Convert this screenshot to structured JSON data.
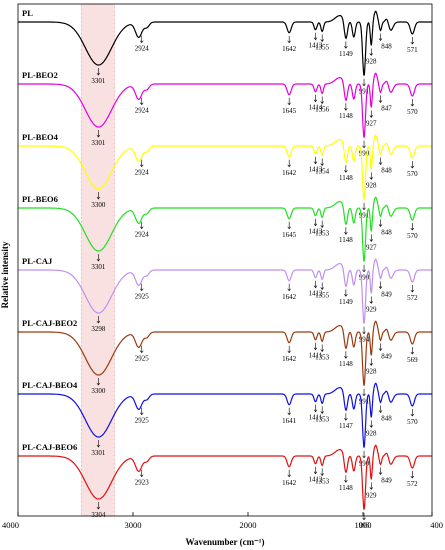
{
  "chart_data": {
    "type": "line",
    "xlabel": "Wavenumber (cm⁻¹)",
    "ylabel": "Relative intensity",
    "xlim": [
      4000,
      400
    ],
    "x_reversed": true,
    "x_ticks": [
      4000,
      3000,
      2000,
      1000,
      400
    ],
    "x_tick_labels": [
      "4000",
      "3000",
      "2000",
      "1000",
      "400"
    ],
    "highlight_band": {
      "from": 3450,
      "to": 3160,
      "color": "#f6c8c8"
    },
    "series": [
      {
        "name": "PL",
        "color": "#000000",
        "peaks": [
          "3301",
          "2924",
          "1642",
          "1413",
          "1355",
          "1149",
          "991",
          "928",
          "848",
          "571"
        ]
      },
      {
        "name": "PL-BEO2",
        "color": "#e000e0",
        "peaks": [
          "3301",
          "2924",
          "1645",
          "1414",
          "1356",
          "1148",
          "990",
          "927",
          "847",
          "570"
        ]
      },
      {
        "name": "PL-BEO4",
        "color": "#ffff00",
        "peaks": [
          "3300",
          "2924",
          "1642",
          "1413",
          "1354",
          "1148",
          "991",
          "928",
          "848",
          "570"
        ]
      },
      {
        "name": "PL-BEO6",
        "color": "#22e022",
        "peaks": [
          "3301",
          "2924",
          "1645",
          "1413",
          "1353",
          "1148",
          "990",
          "927",
          "848",
          "570"
        ]
      },
      {
        "name": "PL-CAJ",
        "color": "#c090f0",
        "peaks": [
          "3298",
          "2925",
          "1642",
          "1412",
          "1355",
          "1149",
          "994",
          "929",
          "849",
          "572"
        ]
      },
      {
        "name": "PL-CAJ-BEO2",
        "color": "#9a3a10",
        "peaks": [
          "3300",
          "2925",
          "1642",
          "1411",
          "1353",
          "1148",
          "991",
          "928",
          "849",
          "569"
        ]
      },
      {
        "name": "PL-CAJ-BEO4",
        "color": "#1010e0",
        "peaks": [
          "3301",
          "2925",
          "1641",
          "1411",
          "1353",
          "1147",
          "990",
          "928",
          "848",
          "570"
        ]
      },
      {
        "name": "PL-CAJ-BEO6",
        "color": "#e01010",
        "peaks": [
          "3304",
          "2923",
          "1642",
          "1412",
          "1353",
          "1148",
          "993",
          "929",
          "849",
          "572"
        ]
      }
    ]
  }
}
